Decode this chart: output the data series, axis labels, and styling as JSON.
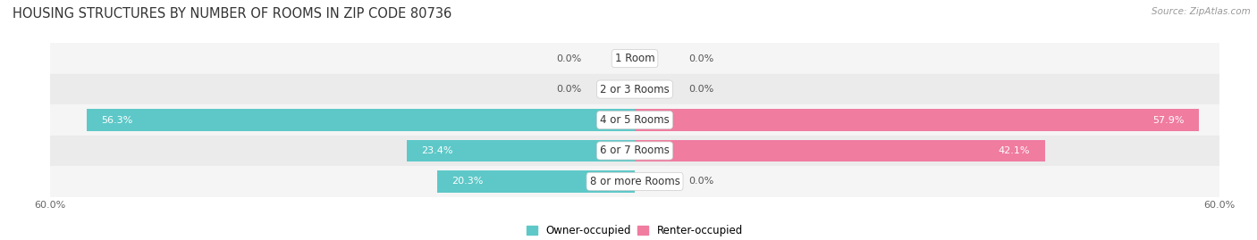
{
  "title": "HOUSING STRUCTURES BY NUMBER OF ROOMS IN ZIP CODE 80736",
  "source": "Source: ZipAtlas.com",
  "categories": [
    "1 Room",
    "2 or 3 Rooms",
    "4 or 5 Rooms",
    "6 or 7 Rooms",
    "8 or more Rooms"
  ],
  "owner_values": [
    0.0,
    0.0,
    56.3,
    23.4,
    20.3
  ],
  "renter_values": [
    0.0,
    0.0,
    57.9,
    42.1,
    0.0
  ],
  "max_value": 60.0,
  "owner_color": "#5ec8c8",
  "renter_color": "#f07ca0",
  "row_bg_even": "#f5f5f5",
  "row_bg_odd": "#ebebeb",
  "bar_height": 0.72,
  "min_bar_width": 5.0,
  "title_fontsize": 10.5,
  "label_fontsize": 8.0,
  "cat_fontsize": 8.5,
  "axis_fontsize": 8.0,
  "legend_fontsize": 8.5,
  "source_fontsize": 7.5
}
